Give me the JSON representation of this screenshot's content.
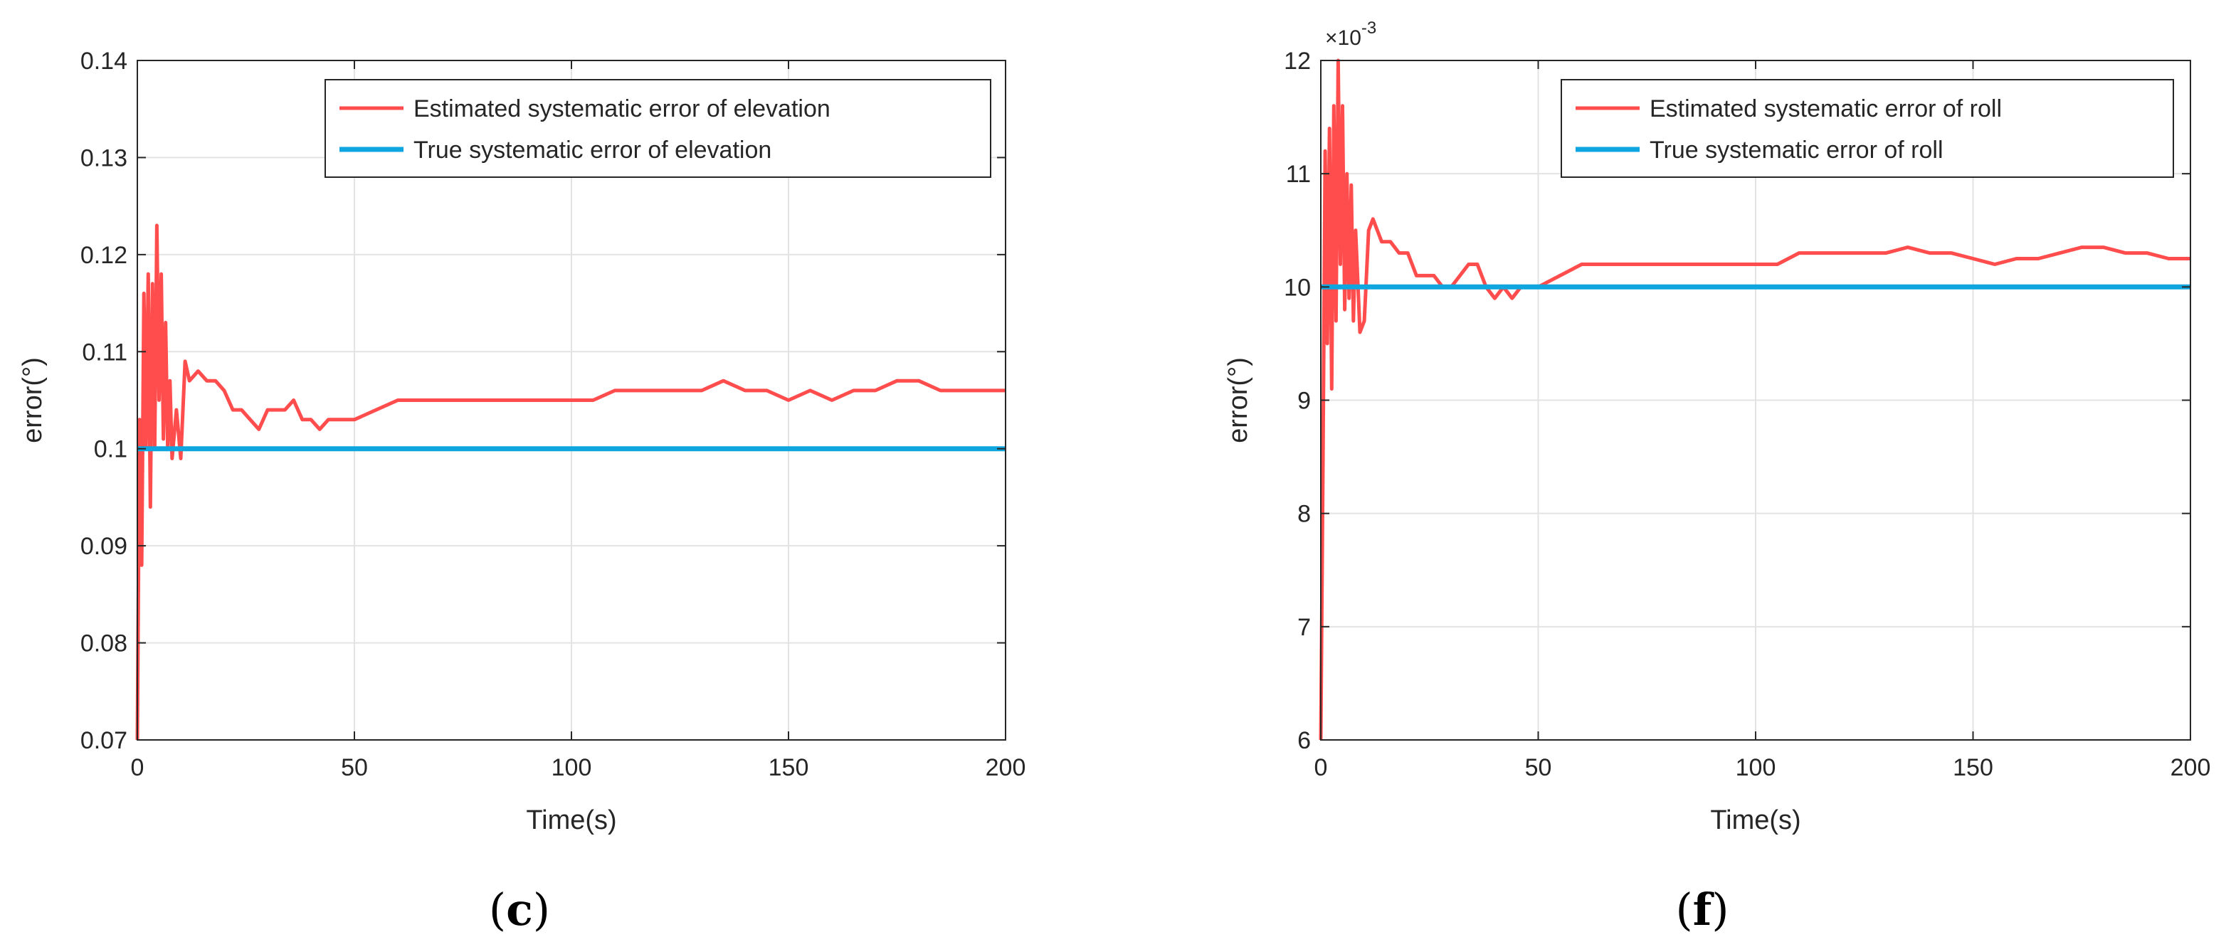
{
  "chart_data": [
    {
      "type": "line",
      "panel_label_prefix": "(",
      "panel_label_letter": "c",
      "panel_label_suffix": ")",
      "xlabel": "Time(s)",
      "ylabel": "error(°)",
      "xlim": [
        0,
        200
      ],
      "ylim": [
        0.07,
        0.14
      ],
      "xticks": [
        0,
        50,
        100,
        150,
        200
      ],
      "xtick_labels": [
        "0",
        "50",
        "100",
        "150",
        "200"
      ],
      "yticks": [
        0.07,
        0.08,
        0.09,
        0.1,
        0.11,
        0.12,
        0.13,
        0.14
      ],
      "ytick_labels": [
        "0.07",
        "0.08",
        "0.09",
        "0.1",
        "0.11",
        "0.12",
        "0.13",
        "0.14"
      ],
      "exponent_label": "",
      "grid": true,
      "legend_position": "top-right",
      "series": [
        {
          "name": "Estimated systematic error of elevation",
          "color": "#ff4d4d",
          "x": [
            0,
            0.5,
            1,
            1.5,
            2,
            2.5,
            3,
            3.5,
            4,
            4.5,
            5,
            5.5,
            6,
            6.5,
            7,
            7.5,
            8,
            9,
            10,
            11,
            12,
            14,
            16,
            18,
            20,
            22,
            24,
            26,
            28,
            30,
            32,
            34,
            36,
            38,
            40,
            42,
            44,
            46,
            48,
            50,
            55,
            60,
            65,
            70,
            75,
            80,
            85,
            90,
            95,
            100,
            105,
            110,
            115,
            120,
            125,
            130,
            135,
            140,
            145,
            150,
            155,
            160,
            165,
            170,
            175,
            180,
            185,
            190,
            195,
            200
          ],
          "values": [
            0.07,
            0.103,
            0.088,
            0.116,
            0.1,
            0.118,
            0.094,
            0.117,
            0.1,
            0.123,
            0.105,
            0.118,
            0.101,
            0.113,
            0.1,
            0.107,
            0.099,
            0.104,
            0.099,
            0.109,
            0.107,
            0.108,
            0.107,
            0.107,
            0.106,
            0.104,
            0.104,
            0.103,
            0.102,
            0.104,
            0.104,
            0.104,
            0.105,
            0.103,
            0.103,
            0.102,
            0.103,
            0.103,
            0.103,
            0.103,
            0.104,
            0.105,
            0.105,
            0.105,
            0.105,
            0.105,
            0.105,
            0.105,
            0.105,
            0.105,
            0.105,
            0.106,
            0.106,
            0.106,
            0.106,
            0.106,
            0.107,
            0.106,
            0.106,
            0.105,
            0.106,
            0.105,
            0.106,
            0.106,
            0.107,
            0.107,
            0.106,
            0.106,
            0.106,
            0.106
          ]
        },
        {
          "name": "True systematic error of elevation",
          "color": "#0fa6e0",
          "x": [
            0,
            200
          ],
          "values": [
            0.1,
            0.1
          ]
        }
      ]
    },
    {
      "type": "line",
      "panel_label_prefix": "(",
      "panel_label_letter": "f",
      "panel_label_suffix": ")",
      "xlabel": "Time(s)",
      "ylabel": "error(°)",
      "xlim": [
        0,
        200
      ],
      "ylim": [
        6,
        12
      ],
      "xticks": [
        0,
        50,
        100,
        150,
        200
      ],
      "xtick_labels": [
        "0",
        "50",
        "100",
        "150",
        "200"
      ],
      "yticks": [
        6,
        7,
        8,
        9,
        10,
        11,
        12
      ],
      "ytick_labels": [
        "6",
        "7",
        "8",
        "9",
        "10",
        "11",
        "12"
      ],
      "exponent_label": "×10",
      "exponent_power": "-3",
      "grid": true,
      "legend_position": "top-right",
      "series": [
        {
          "name": "Estimated systematic error of roll",
          "color": "#ff4d4d",
          "x": [
            0,
            0.5,
            1,
            1.5,
            2,
            2.5,
            3,
            3.5,
            4,
            4.5,
            5,
            5.5,
            6,
            6.5,
            7,
            7.5,
            8,
            9,
            10,
            11,
            12,
            14,
            16,
            18,
            20,
            22,
            24,
            26,
            28,
            30,
            32,
            34,
            36,
            38,
            40,
            42,
            44,
            46,
            48,
            50,
            55,
            60,
            65,
            70,
            75,
            80,
            85,
            90,
            95,
            100,
            105,
            110,
            115,
            120,
            125,
            130,
            135,
            140,
            145,
            150,
            155,
            160,
            165,
            170,
            175,
            180,
            185,
            190,
            195,
            200
          ],
          "values": [
            6.0,
            8.5,
            11.2,
            9.5,
            11.4,
            9.1,
            11.6,
            9.7,
            12.0,
            10.2,
            11.6,
            9.8,
            11.0,
            9.9,
            10.9,
            9.7,
            10.5,
            9.6,
            9.7,
            10.5,
            10.6,
            10.4,
            10.4,
            10.3,
            10.3,
            10.1,
            10.1,
            10.1,
            10.0,
            10.0,
            10.1,
            10.2,
            10.2,
            10.0,
            9.9,
            10.0,
            9.9,
            10.0,
            10.0,
            10.0,
            10.1,
            10.2,
            10.2,
            10.2,
            10.2,
            10.2,
            10.2,
            10.2,
            10.2,
            10.2,
            10.2,
            10.3,
            10.3,
            10.3,
            10.3,
            10.3,
            10.35,
            10.3,
            10.3,
            10.25,
            10.2,
            10.25,
            10.25,
            10.3,
            10.35,
            10.35,
            10.3,
            10.3,
            10.25,
            10.25
          ]
        },
        {
          "name": "True systematic error of roll",
          "color": "#0fa6e0",
          "x": [
            0,
            200
          ],
          "values": [
            10,
            10
          ]
        }
      ]
    }
  ]
}
